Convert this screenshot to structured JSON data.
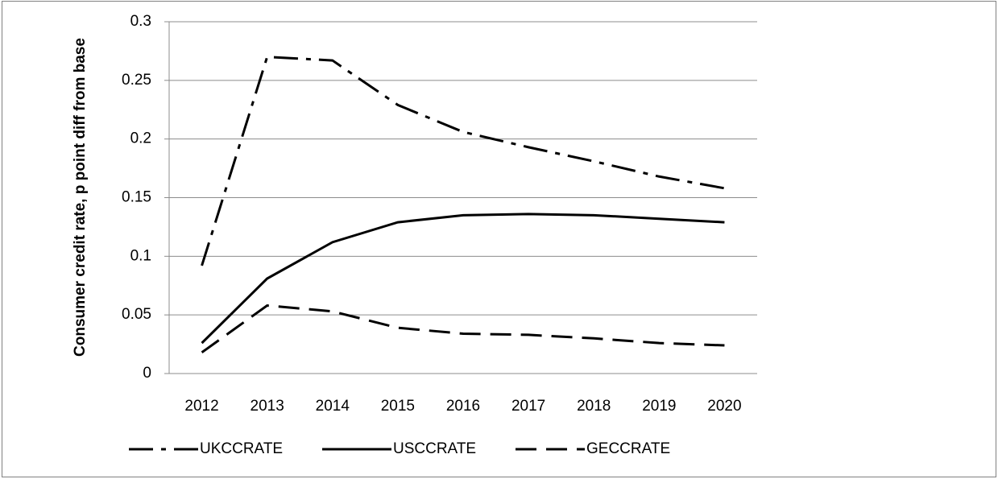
{
  "chart_data": {
    "type": "line",
    "y_label": "Consumer credit rate, p point diff from base",
    "categories": [
      "2012",
      "2013",
      "2014",
      "2015",
      "2016",
      "2017",
      "2018",
      "2019",
      "2020"
    ],
    "series": [
      {
        "name": "UKCCRATE",
        "color": "#000000",
        "dash": "dash-dot",
        "values": [
          0.092,
          0.27,
          0.267,
          0.229,
          0.206,
          0.193,
          0.181,
          0.168,
          0.158
        ]
      },
      {
        "name": "USCCRATE",
        "color": "#000000",
        "dash": "solid",
        "values": [
          0.026,
          0.081,
          0.112,
          0.129,
          0.135,
          0.136,
          0.135,
          0.132,
          0.129
        ]
      },
      {
        "name": "GECCRATE",
        "color": "#000000",
        "dash": "dashed",
        "values": [
          0.018,
          0.058,
          0.053,
          0.039,
          0.034,
          0.033,
          0.03,
          0.026,
          0.024
        ]
      }
    ],
    "ylim": [
      0,
      0.3
    ],
    "yticks": [
      0,
      0.05,
      0.1,
      0.15,
      0.2,
      0.25,
      0.3
    ],
    "grid": true,
    "legend": "bottom"
  }
}
